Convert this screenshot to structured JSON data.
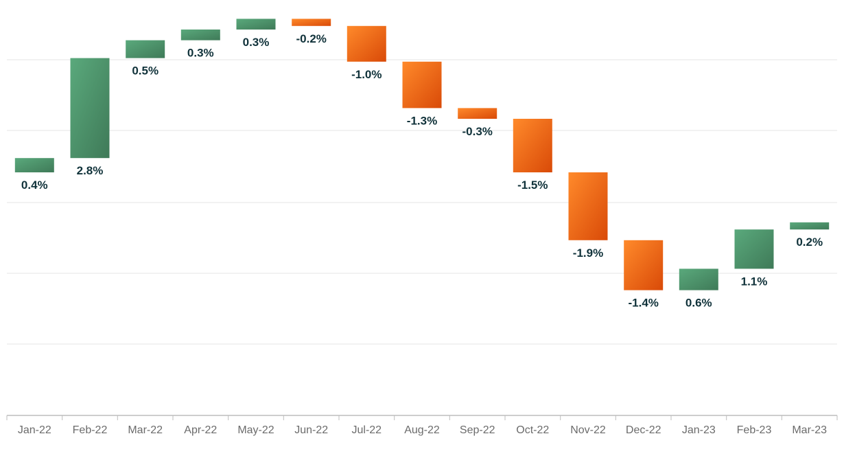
{
  "chart_data": {
    "type": "waterfall",
    "categories": [
      "Jan-22",
      "Feb-22",
      "Mar-22",
      "Apr-22",
      "May-22",
      "Jun-22",
      "Jul-22",
      "Aug-22",
      "Sep-22",
      "Oct-22",
      "Nov-22",
      "Dec-22",
      "Jan-23",
      "Feb-23",
      "Mar-23"
    ],
    "values": [
      0.4,
      2.8,
      0.5,
      0.3,
      0.3,
      -0.2,
      -1.0,
      -1.3,
      -0.3,
      -1.5,
      -1.9,
      -1.4,
      0.6,
      1.1,
      0.2
    ],
    "labels": [
      "0.4%",
      "2.8%",
      "0.5%",
      "0.3%",
      "0.3%",
      "-0.2%",
      "-1.0%",
      "-1.3%",
      "-0.3%",
      "-1.5%",
      "-1.9%",
      "-1.4%",
      "0.6%",
      "1.1%",
      "0.2%"
    ],
    "baseline_start": 0,
    "ylim": [
      -7.8,
      4.3
    ],
    "grid": true,
    "colors": {
      "increase_top": "#5aa97c",
      "increase_bottom": "#3f7a58",
      "decrease_top": "#ff8a2b",
      "decrease_bottom": "#d94a08",
      "label": "#10323a",
      "axis_text": "#6b6b6b",
      "grid": "#e6e6e6"
    }
  }
}
